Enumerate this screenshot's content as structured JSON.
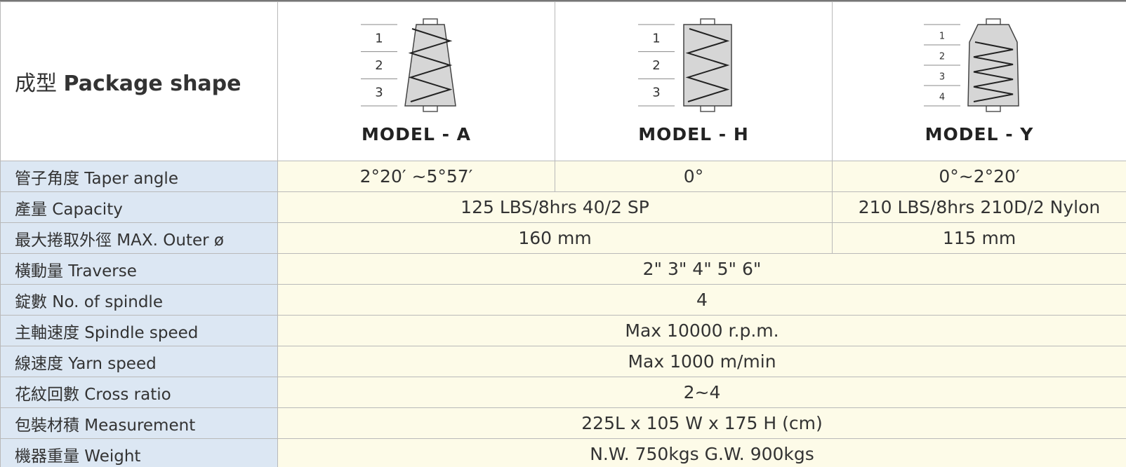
{
  "header": {
    "label_cn": "成型",
    "label_en": "Package shape"
  },
  "models": [
    {
      "name": "MODEL - A",
      "layers": [
        "1",
        "2",
        "3"
      ]
    },
    {
      "name": "MODEL - H",
      "layers": [
        "1",
        "2",
        "3"
      ]
    },
    {
      "name": "MODEL - Y",
      "layers": [
        "1",
        "2",
        "3",
        "4"
      ]
    }
  ],
  "rows": [
    {
      "label": "管子角度 Taper angle",
      "cells": [
        "2°20′ ~5°57′",
        "0°",
        "0°~2°20′"
      ]
    },
    {
      "label": "產量 Capacity",
      "cells": [
        "125  LBS/8hrs  40/2 SP",
        "210 LBS/8hrs  210D/2 Nylon"
      ]
    },
    {
      "label": "最大捲取外徑 MAX. Outer ø",
      "cells": [
        "160 mm",
        "115 mm"
      ]
    },
    {
      "label": "橫動量 Traverse",
      "cells": [
        "2\"  3\"  4\"  5\"  6\""
      ]
    },
    {
      "label": "錠數 No. of spindle",
      "cells": [
        "4"
      ]
    },
    {
      "label": "主軸速度 Spindle speed",
      "cells": [
        "Max 10000 r.p.m."
      ]
    },
    {
      "label": "線速度 Yarn speed",
      "cells": [
        "Max 1000 m/min"
      ]
    },
    {
      "label": "花紋回數 Cross ratio",
      "cells": [
        "2~4"
      ]
    },
    {
      "label": "包裝材積 Measurement",
      "cells": [
        "225L x 105 W x 175 H  (cm)"
      ]
    },
    {
      "label": "機器重量 Weight",
      "cells": [
        "N.W. 750kgs        G.W. 900kgs"
      ]
    }
  ]
}
